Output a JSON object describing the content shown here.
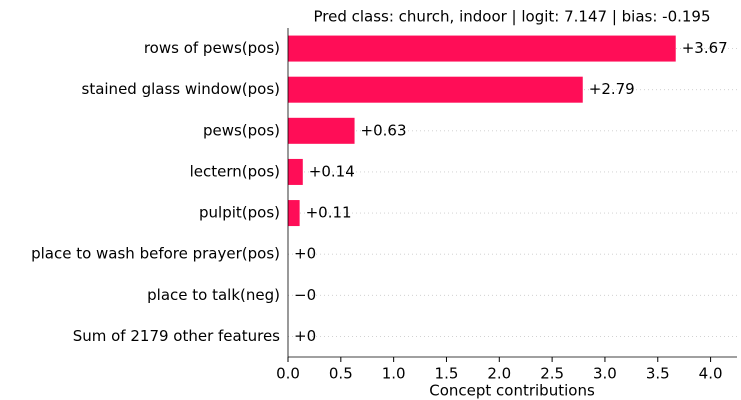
{
  "chart_data": {
    "type": "barh",
    "title": "Pred class: church, indoor | logit: 7.147 | bias: -0.195",
    "xlabel": "Concept contributions",
    "categories": [
      "rows of pews(pos)",
      "stained glass window(pos)",
      "pews(pos)",
      "lectern(pos)",
      "pulpit(pos)",
      "place to wash before prayer(pos)",
      "place to talk(neg)",
      "Sum of 2179 other features"
    ],
    "values": [
      3.67,
      2.79,
      0.63,
      0.14,
      0.11,
      0,
      0,
      0
    ],
    "value_labels": [
      "+3.67",
      "+2.79",
      "+0.63",
      "+0.14",
      "+0.11",
      "+0",
      "−0",
      "+0"
    ],
    "color": "#ff0d57",
    "xlim": [
      0,
      4.25
    ],
    "xticks": [
      {
        "value": 0,
        "label": "0.0"
      },
      0.5,
      {
        "value": 1,
        "label": "1.0"
      },
      1.5,
      {
        "value": 2,
        "label": "2.0"
      },
      2.5,
      {
        "value": 3,
        "label": "3.0"
      },
      3.5,
      {
        "value": 4,
        "label": "4.0"
      }
    ],
    "grid": true
  }
}
